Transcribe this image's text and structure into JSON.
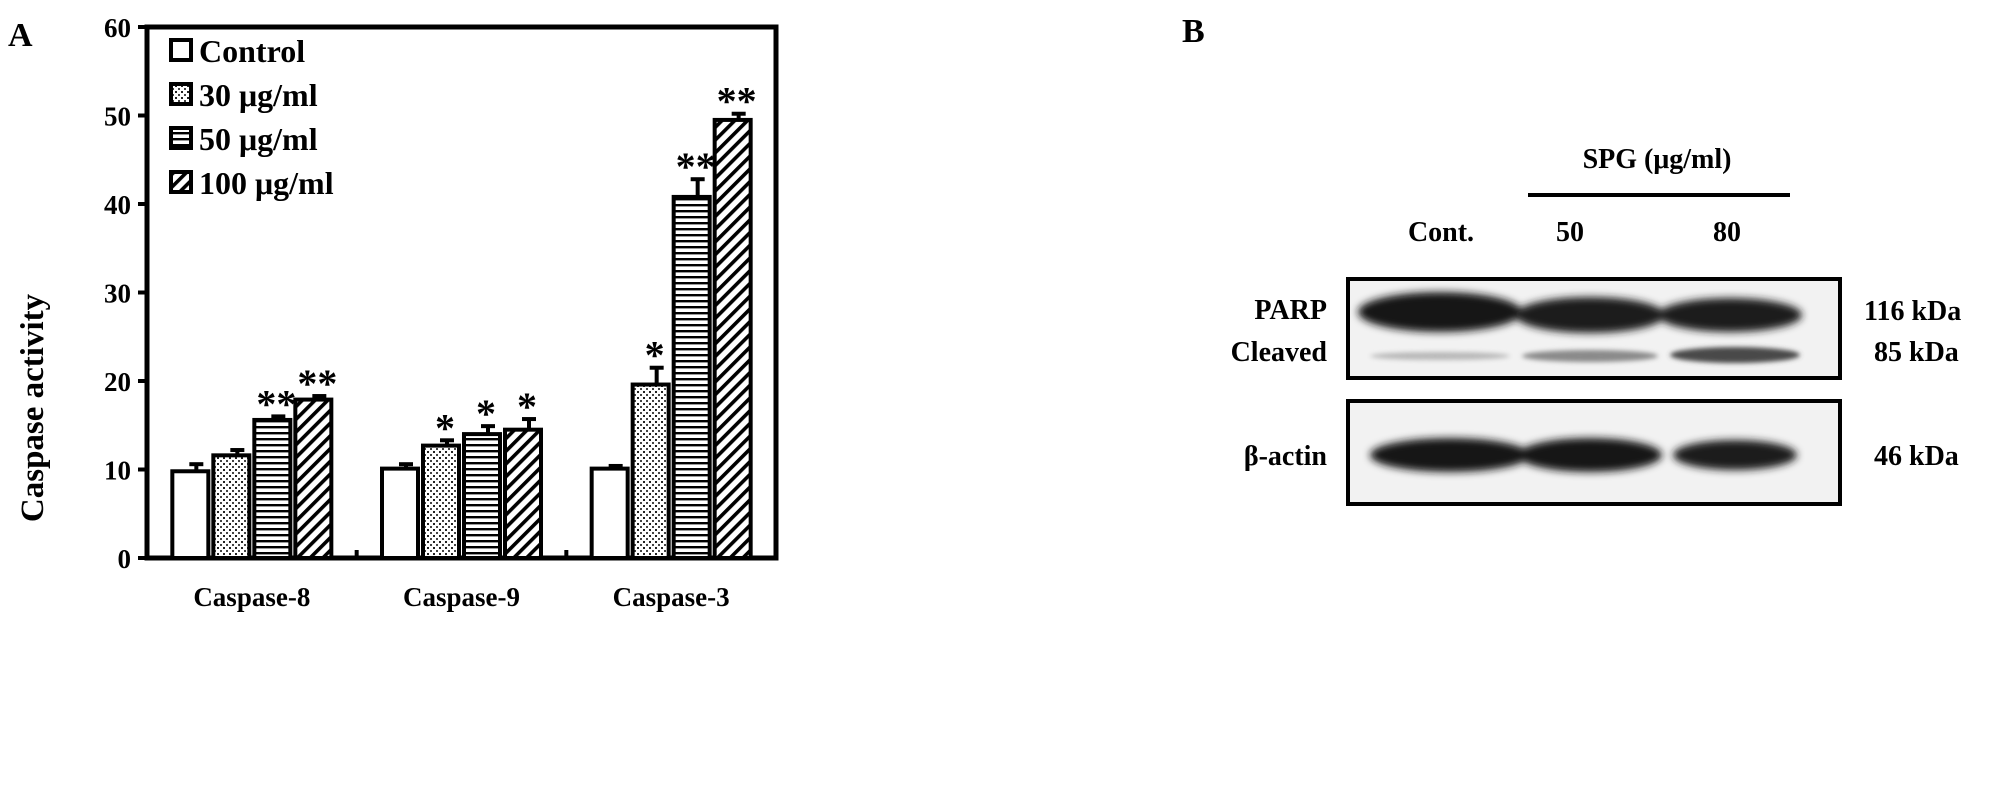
{
  "panel_a": {
    "label": "A",
    "legend": [
      {
        "label": "Control",
        "pattern": "solid"
      },
      {
        "label": "30 μg/ml",
        "pattern": "dots"
      },
      {
        "label": "50 μg/ml",
        "pattern": "hlines"
      },
      {
        "label": "100 μg/ml",
        "pattern": "diag"
      }
    ]
  },
  "panel_b": {
    "label": "B",
    "treatment_label": "SPG (μg/ml)",
    "lanes": [
      "Cont.",
      "50",
      "80"
    ],
    "blots": [
      {
        "row_labels": [
          "PARP",
          "Cleaved"
        ],
        "size_labels": [
          "116 kDa",
          "85 kDa"
        ]
      },
      {
        "row_labels": [
          "β-actin"
        ],
        "size_labels": [
          "46 kDa"
        ]
      }
    ]
  },
  "chart_data": {
    "type": "bar",
    "title": "",
    "xlabel": "",
    "ylabel": "Caspase activity",
    "ylim": [
      0,
      60
    ],
    "yticks": [
      0,
      10,
      20,
      30,
      40,
      50,
      60
    ],
    "categories": [
      "Caspase-8",
      "Caspase-9",
      "Caspase-3"
    ],
    "series": [
      {
        "name": "Control",
        "values": [
          9.8,
          10.1,
          10.1
        ],
        "errors": [
          0.8,
          0.5,
          0.3
        ],
        "significance": [
          "",
          "",
          ""
        ]
      },
      {
        "name": "30 μg/ml",
        "values": [
          11.6,
          12.7,
          19.6
        ],
        "errors": [
          0.6,
          0.6,
          1.9
        ],
        "significance": [
          "",
          "*",
          "*"
        ]
      },
      {
        "name": "50 μg/ml",
        "values": [
          15.6,
          14.0,
          40.8
        ],
        "errors": [
          0.4,
          0.9,
          2.0
        ],
        "significance": [
          "**",
          "*",
          "**"
        ]
      },
      {
        "name": "100 μg/ml",
        "values": [
          17.9,
          14.5,
          49.5
        ],
        "errors": [
          0.4,
          1.2,
          0.7
        ],
        "significance": [
          "**",
          "*",
          "**"
        ]
      }
    ],
    "grid": false,
    "legend_position": "top-left"
  }
}
